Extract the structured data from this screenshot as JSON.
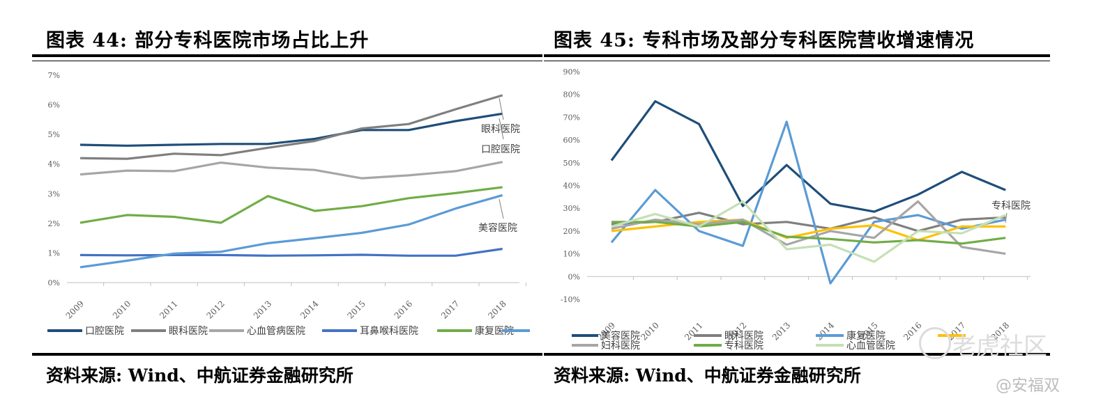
{
  "left_panel": {
    "title": "图表 44: 部分专科医院市场占比上升",
    "source": "资料来源: Wind、中航证券金融研究所"
  },
  "right_panel": {
    "title": "图表 45: 专科市场及部分专科医院营收增速情况",
    "source": "资料来源: Wind、中航证券金融研究所"
  },
  "watermark": {
    "text": "老虎社区",
    "handle": "@安福双"
  },
  "colors": {
    "dark_blue": "#1f4e79",
    "gray": "#7f7f7f",
    "light_gray": "#a6a6a6",
    "blue": "#4472c4",
    "green": "#70ad47",
    "light_blue": "#5b9bd5",
    "yellow": "#ffc000",
    "light_green": "#c5e0b4"
  },
  "chart_data": [
    {
      "type": "line",
      "title": "部分专科医院市场占比上升",
      "x": [
        "2009",
        "2010",
        "2011",
        "2012",
        "2013",
        "2014",
        "2015",
        "2016",
        "2017",
        "2018"
      ],
      "ylim": [
        0,
        7
      ],
      "yticks": [
        "0%",
        "1%",
        "2%",
        "3%",
        "4%",
        "5%",
        "6%",
        "7%"
      ],
      "grid": false,
      "legend_position": "bottom",
      "series": [
        {
          "name": "口腔医院",
          "color": "#1f4e79",
          "values": [
            4.65,
            4.62,
            4.65,
            4.68,
            4.68,
            4.85,
            5.15,
            5.15,
            5.45,
            5.7
          ]
        },
        {
          "name": "眼科医院",
          "color": "#7f7f7f",
          "values": [
            4.2,
            4.18,
            4.35,
            4.3,
            4.55,
            4.78,
            5.2,
            5.35,
            5.85,
            6.32
          ]
        },
        {
          "name": "心血管病医院",
          "color": "#a6a6a6",
          "values": [
            3.65,
            3.78,
            3.76,
            4.05,
            3.88,
            3.8,
            3.52,
            3.62,
            3.76,
            4.07
          ]
        },
        {
          "name": "耳鼻喉科医院",
          "color": "#4472c4",
          "values": [
            0.93,
            0.92,
            0.93,
            0.93,
            0.91,
            0.92,
            0.94,
            0.91,
            0.91,
            1.14
          ]
        },
        {
          "name": "康复医院",
          "color": "#70ad47",
          "values": [
            2.02,
            2.28,
            2.22,
            2.02,
            2.92,
            2.42,
            2.58,
            2.85,
            3.02,
            3.22
          ]
        },
        {
          "name": "美容医院",
          "color": "#5b9bd5",
          "values": [
            0.52,
            0.74,
            0.98,
            1.04,
            1.33,
            1.5,
            1.68,
            1.96,
            2.5,
            2.95
          ]
        }
      ],
      "annotations": [
        "眼科医院",
        "口腔医院",
        "美容医院"
      ]
    },
    {
      "type": "line",
      "title": "专科市场及部分专科医院营收增速情况",
      "x": [
        "2009",
        "2010",
        "2011",
        "2012",
        "2013",
        "2014",
        "2015",
        "2016",
        "2017",
        "2018"
      ],
      "ylim": [
        -10,
        90
      ],
      "yticks": [
        "-10%",
        "0%",
        "10%",
        "20%",
        "30%",
        "40%",
        "50%",
        "60%",
        "70%",
        "80%",
        "90%"
      ],
      "grid": false,
      "legend_position": "bottom",
      "series": [
        {
          "name": "美容医院",
          "color": "#1f4e79",
          "values": [
            51,
            77,
            67,
            31,
            49,
            32,
            28.5,
            36,
            46,
            38
          ]
        },
        {
          "name": "眼科医院",
          "color": "#7f7f7f",
          "values": [
            23,
            24,
            28,
            23,
            24,
            21,
            26,
            20,
            25,
            26
          ]
        },
        {
          "name": "康复医院",
          "color": "#5b9bd5",
          "values": [
            15,
            38,
            20,
            13.5,
            68,
            -3,
            24,
            27,
            21,
            25
          ]
        },
        {
          "name": "",
          "color": "#ffc000",
          "values": [
            20,
            22,
            24,
            25,
            17,
            21,
            22.5,
            16,
            22,
            22
          ]
        },
        {
          "name": "妇科医院",
          "color": "#a6a6a6",
          "values": [
            21,
            25,
            23,
            25,
            14,
            20,
            17,
            33,
            13,
            10
          ]
        },
        {
          "name": "专科医院",
          "color": "#70ad47",
          "values": [
            24,
            24,
            22,
            24,
            17.5,
            16.5,
            15,
            16,
            14.5,
            17
          ]
        },
        {
          "name": "心血管医院",
          "color": "#c5e0b4",
          "values": [
            22,
            27.5,
            22,
            33,
            12,
            14,
            6.5,
            20,
            19,
            27
          ]
        }
      ],
      "annotations": [
        "专科医院"
      ]
    }
  ]
}
